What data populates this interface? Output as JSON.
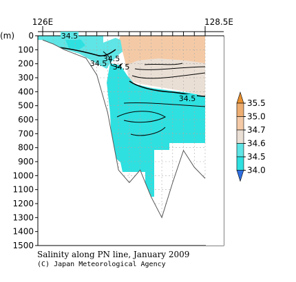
{
  "chart_data": {
    "type": "heatmap",
    "title": "Salinity along PN line, January 2009",
    "credit": "(C) Japan Meteorological Agency",
    "top_axis_labels": [
      "126E",
      "128.5E"
    ],
    "y_unit_label": "(m)",
    "yticks": [
      0,
      100,
      200,
      300,
      400,
      500,
      600,
      700,
      800,
      900,
      1000,
      1100,
      1200,
      1300,
      1400,
      1500
    ],
    "ylim": [
      1500,
      0
    ],
    "grid": true,
    "contour_labels": [
      "34.5",
      "34.5",
      "34.5",
      "34.5",
      "34.5"
    ],
    "colorbar": {
      "levels": [
        "35.5",
        "35.0",
        "34.7",
        "34.6",
        "34.5",
        "34.0"
      ],
      "colors": {
        "gt_35_5": "#e8902f",
        "35_0_to_35_5": "#eeae72",
        "34_7_to_35_0": "#f4caa6",
        "34_6_to_34_7": "#eadfd5",
        "34_5_to_34_6": "#5fe5e5",
        "34_0_to_34_5": "#2fe0e0",
        "lt_34_0": "#2f6fe0"
      }
    },
    "bottom_profile_depth_m": [
      30,
      60,
      100,
      130,
      160,
      280,
      550,
      960,
      1050,
      960,
      1150,
      1300,
      1050,
      820,
      940,
      1020
    ]
  }
}
